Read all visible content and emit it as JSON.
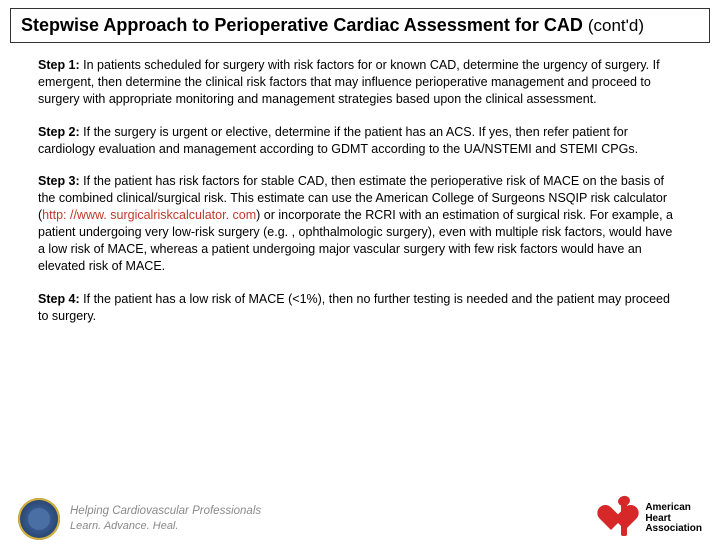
{
  "title": "Stepwise Approach to Perioperative Cardiac Assessment for CAD",
  "title_cont": "(cont'd)",
  "steps": [
    {
      "label": "Step 1:",
      "text": " In patients scheduled for surgery with risk factors for or known CAD, determine the urgency of surgery. If emergent, then determine the clinical risk factors that may influence perioperative management and proceed to surgery with appropriate monitoring and management strategies based upon the clinical assessment."
    },
    {
      "label": "Step 2:",
      "text": " If the surgery is urgent or elective, determine if the patient has an ACS. If yes, then refer patient for cardiology evaluation and management according to GDMT according to the UA/NSTEMI and STEMI CPGs."
    },
    {
      "label": "Step 3:",
      "pre": " If the patient has risk factors for stable CAD, then estimate the perioperative risk of MACE on the basis of the combined clinical/surgical risk. This estimate can use the American College of Surgeons NSQIP risk calculator (",
      "link": "http: //www. surgicalriskcalculator. com",
      "post": ") or incorporate the RCRI with an estimation of surgical risk. For example, a patient undergoing very low-risk surgery (e.g. , ophthalmologic surgery), even with multiple risk factors, would have a low risk of MACE, whereas a patient undergoing major vascular surgery with few risk factors would have an elevated risk of MACE."
    },
    {
      "label": "Step 4:",
      "text": " If the patient has a low risk of MACE (<1%), then no further testing is needed and the patient may proceed to surgery."
    }
  ],
  "footer": {
    "tagline_line1": "Helping Cardiovascular Professionals",
    "tagline_line2": "Learn. Advance. Heal.",
    "aha_line1": "American",
    "aha_line2": "Heart",
    "aha_line3": "Association",
    "aha_sub": ""
  },
  "colors": {
    "link": "#c0392b",
    "seal_primary": "#2b4a7a",
    "heart": "#d62828",
    "tagline": "#8a8a8a"
  }
}
